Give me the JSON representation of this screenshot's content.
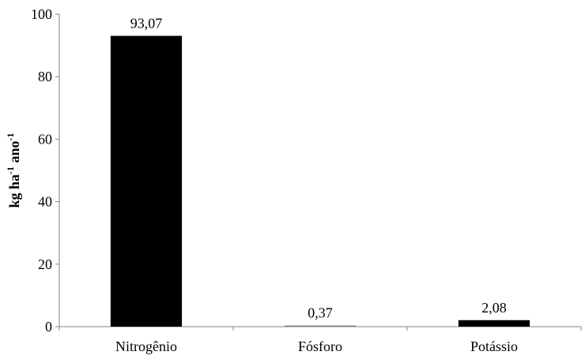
{
  "chart_data": {
    "type": "bar",
    "categories": [
      "Nitrogênio",
      "Fósforo",
      "Potássio"
    ],
    "values": [
      93.07,
      0.37,
      2.08
    ],
    "data_labels": [
      "93,07",
      "0,37",
      "2,08"
    ],
    "ylabel": {
      "base1": "kg ha",
      "sup1": "-1",
      "base2": " ano",
      "sup2": "-1"
    },
    "ylim": [
      0,
      100
    ],
    "yticks": [
      0,
      20,
      40,
      60,
      80,
      100
    ],
    "ytick_labels": [
      "0",
      "20",
      "40",
      "60",
      "80",
      "100"
    ],
    "grid": false,
    "legend": "none",
    "bar_color": "#000000"
  }
}
